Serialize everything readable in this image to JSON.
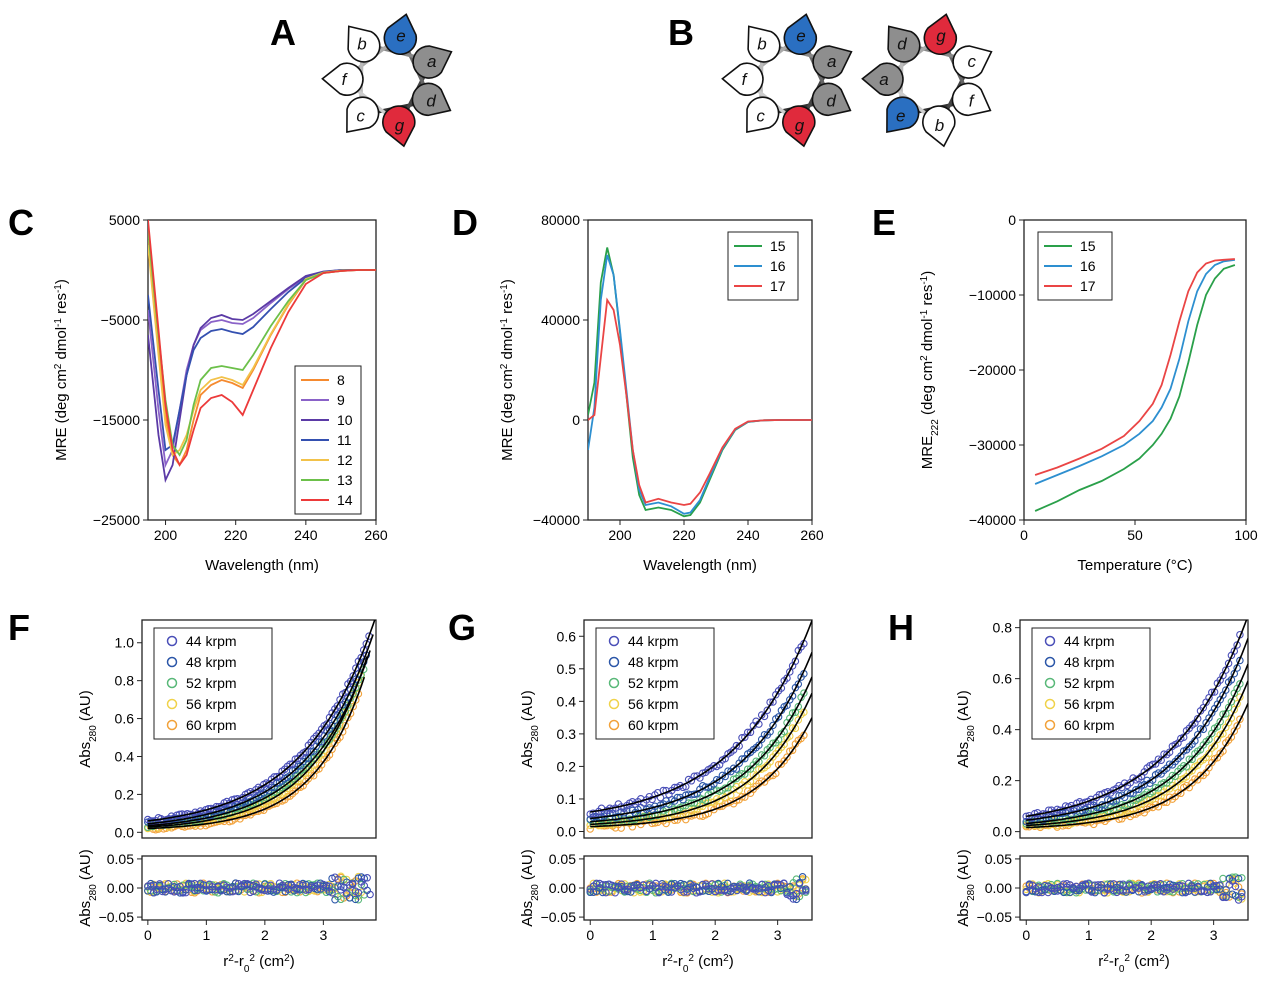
{
  "panel_labels": [
    "A",
    "B",
    "C",
    "D",
    "E",
    "F",
    "G",
    "H"
  ],
  "colors": {
    "red": "#e02a3c",
    "blue": "#2a6fc1",
    "grey": "#8e8e8e",
    "white": "#ffffff",
    "s8": "#f58a2f",
    "s9": "#8a62c8",
    "s10": "#5b3aa6",
    "s11": "#3450b0",
    "s12": "#f2c24a",
    "s13": "#6cc04a",
    "s14": "#ec3a3a",
    "s15": "#2aa04a",
    "s16": "#2d8fd0",
    "s17": "#ea4545",
    "k44": "#4a4fb8",
    "k48": "#2b56a8",
    "k52": "#58b878",
    "k56": "#f0d24a",
    "k60": "#f2a23a"
  },
  "wheels": {
    "A": {
      "positions": [
        "c",
        "g",
        "d",
        "a",
        "e",
        "b",
        "f"
      ],
      "fills": [
        "white",
        "red",
        "grey",
        "grey",
        "blue",
        "white",
        "white"
      ]
    },
    "B_left": {
      "positions": [
        "c",
        "g",
        "d",
        "a",
        "e",
        "b",
        "f"
      ],
      "fills": [
        "white",
        "red",
        "grey",
        "grey",
        "blue",
        "white",
        "white"
      ]
    },
    "B_right": {
      "positions": [
        "e",
        "b",
        "f",
        "c",
        "g",
        "d",
        "a"
      ],
      "fills": [
        "blue",
        "white",
        "white",
        "white",
        "red",
        "grey",
        "grey"
      ]
    }
  },
  "chart_data": [
    {
      "panel": "C",
      "type": "line",
      "xlabel": "Wavelength (nm)",
      "ylabel": "MRE (deg cm2 dmol-1 res-1)",
      "xlim": [
        195,
        260
      ],
      "ylim": [
        -25000,
        5000
      ],
      "xticks": [
        200,
        220,
        240,
        260
      ],
      "yticks": [
        5000,
        -5000,
        -15000,
        -25000
      ],
      "legend": "lower-right",
      "x": [
        195,
        198,
        200,
        202,
        204,
        206,
        208,
        210,
        213,
        216,
        219,
        222,
        225,
        230,
        235,
        240,
        245,
        250,
        255,
        260
      ],
      "series": [
        {
          "name": "8",
          "color_key": "s8",
          "values": [
            3000,
            -7000,
            -14500,
            -18500,
            -19500,
            -18000,
            -15000,
            -12500,
            -11500,
            -11000,
            -11300,
            -11800,
            -10000,
            -6500,
            -3500,
            -1000,
            -300,
            -100,
            0,
            0
          ]
        },
        {
          "name": "9",
          "color_key": "s9",
          "values": [
            -4000,
            -14000,
            -19500,
            -18000,
            -14000,
            -10000,
            -7500,
            -6000,
            -5200,
            -5000,
            -5300,
            -5400,
            -4800,
            -3300,
            -1900,
            -700,
            -200,
            0,
            0,
            0
          ]
        },
        {
          "name": "10",
          "color_key": "s10",
          "values": [
            -6500,
            -16500,
            -21000,
            -19500,
            -15000,
            -10500,
            -7500,
            -5800,
            -4800,
            -4500,
            -4900,
            -5000,
            -4400,
            -3100,
            -1800,
            -600,
            -150,
            0,
            0,
            0
          ]
        },
        {
          "name": "11",
          "color_key": "s11",
          "values": [
            -2500,
            -12000,
            -18000,
            -17500,
            -14000,
            -10500,
            -8000,
            -6800,
            -6100,
            -5900,
            -6200,
            -6400,
            -5700,
            -3900,
            -2200,
            -800,
            -200,
            0,
            0,
            0
          ]
        },
        {
          "name": "12",
          "color_key": "s12",
          "values": [
            2500,
            -8500,
            -15500,
            -18500,
            -18000,
            -16500,
            -14000,
            -12000,
            -11000,
            -10700,
            -11000,
            -11500,
            -9800,
            -6400,
            -3400,
            -900,
            -250,
            -50,
            0,
            0
          ]
        },
        {
          "name": "13",
          "color_key": "s13",
          "values": [
            4000,
            -6500,
            -13000,
            -17500,
            -18500,
            -17000,
            -13500,
            -11000,
            -9800,
            -9600,
            -9800,
            -10000,
            -8500,
            -5600,
            -3100,
            -1000,
            -300,
            -100,
            0,
            0
          ]
        },
        {
          "name": "14",
          "color_key": "s14",
          "values": [
            5000,
            -6000,
            -13500,
            -18000,
            -19500,
            -18500,
            -16000,
            -13800,
            -12800,
            -12500,
            -13200,
            -14500,
            -12000,
            -7800,
            -4200,
            -1400,
            -300,
            -100,
            0,
            0
          ]
        }
      ]
    },
    {
      "panel": "D",
      "type": "line",
      "xlabel": "Wavelength (nm)",
      "ylabel": "MRE (deg cm2 dmol-1 res-1)",
      "xlim": [
        190,
        260
      ],
      "ylim": [
        -40000,
        80000
      ],
      "xticks": [
        200,
        220,
        240,
        260
      ],
      "yticks": [
        80000,
        40000,
        0,
        -40000
      ],
      "legend": "top-right",
      "x": [
        190,
        192,
        194,
        196,
        198,
        200,
        202,
        204,
        206,
        208,
        212,
        216,
        220,
        222,
        225,
        228,
        232,
        236,
        240,
        245,
        250,
        255,
        260
      ],
      "series": [
        {
          "name": "15",
          "color_key": "s15",
          "values": [
            2000,
            15000,
            55000,
            69000,
            58000,
            35000,
            10000,
            -15000,
            -30000,
            -36000,
            -35000,
            -36000,
            -38500,
            -38000,
            -33000,
            -24000,
            -12000,
            -4000,
            -800,
            -100,
            0,
            0,
            0
          ]
        },
        {
          "name": "16",
          "color_key": "s16",
          "values": [
            -12000,
            5000,
            48000,
            66000,
            58000,
            36000,
            12000,
            -12000,
            -28000,
            -34000,
            -33000,
            -34500,
            -37500,
            -37000,
            -32000,
            -23000,
            -11500,
            -3800,
            -700,
            -100,
            0,
            0,
            0
          ]
        },
        {
          "name": "17",
          "color_key": "s17",
          "values": [
            0,
            2000,
            25000,
            48000,
            44000,
            30000,
            10000,
            -12000,
            -26000,
            -33000,
            -31500,
            -33000,
            -34000,
            -33500,
            -29000,
            -21500,
            -11000,
            -3500,
            -600,
            -100,
            0,
            0,
            0
          ]
        }
      ]
    },
    {
      "panel": "E",
      "type": "line",
      "xlabel": "Temperature (°C)",
      "ylabel": "MRE222 (deg cm2 dmol-1 res-1)",
      "xlim": [
        0,
        100
      ],
      "ylim": [
        -40000,
        0
      ],
      "xticks": [
        0,
        50,
        100
      ],
      "yticks": [
        0,
        -10000,
        -20000,
        -30000,
        -40000
      ],
      "legend": "top-left",
      "x": [
        5,
        15,
        25,
        35,
        45,
        52,
        58,
        62,
        66,
        70,
        74,
        78,
        82,
        86,
        90,
        95
      ],
      "series": [
        {
          "name": "15",
          "color_key": "s15",
          "values": [
            -38800,
            -37500,
            -36000,
            -34800,
            -33200,
            -31800,
            -30000,
            -28500,
            -26500,
            -23500,
            -19000,
            -14000,
            -10000,
            -7800,
            -6500,
            -6000
          ]
        },
        {
          "name": "16",
          "color_key": "s16",
          "values": [
            -35200,
            -34000,
            -32800,
            -31500,
            -30000,
            -28500,
            -26800,
            -25000,
            -22500,
            -18500,
            -13500,
            -9500,
            -7200,
            -6000,
            -5500,
            -5300
          ]
        },
        {
          "name": "17",
          "color_key": "s17",
          "values": [
            -34000,
            -33000,
            -31800,
            -30500,
            -28800,
            -26800,
            -24500,
            -22000,
            -18000,
            -13500,
            -9500,
            -7000,
            -5800,
            -5400,
            -5300,
            -5200
          ]
        }
      ]
    },
    {
      "panel": "F",
      "type": "scatter",
      "xlabel": "r2-r02 (cm2)",
      "ylabel": "Abs280 (AU)",
      "residual_ylabel": "Abs280 (AU)",
      "xlim": [
        -0.1,
        3.9
      ],
      "ylim": [
        -0.03,
        1.12
      ],
      "residual_ylim": [
        -0.055,
        0.055
      ],
      "xticks": [
        0,
        1,
        2,
        3
      ],
      "yticks": [
        0.0,
        0.2,
        0.4,
        0.6,
        0.8,
        1.0
      ],
      "residual_yticks": [
        0.05,
        0.0,
        -0.05
      ],
      "legend": "top-left",
      "series": [
        {
          "name": "44 krpm",
          "color_key": "k44",
          "baseline": 0.06,
          "amplitude": 0.046,
          "rate": 0.82,
          "xmax": 3.8
        },
        {
          "name": "48 krpm",
          "color_key": "k48",
          "baseline": 0.045,
          "amplitude": 0.0349,
          "rate": 0.88,
          "xmax": 3.75
        },
        {
          "name": "52 krpm",
          "color_key": "k52",
          "baseline": 0.035,
          "amplitude": 0.0257,
          "rate": 0.95,
          "xmax": 3.7
        },
        {
          "name": "56 krpm",
          "color_key": "k56",
          "baseline": 0.028,
          "amplitude": 0.0179,
          "rate": 1.05,
          "xmax": 3.65
        },
        {
          "name": "60 krpm",
          "color_key": "k60",
          "baseline": 0.02,
          "amplitude": 0.0115,
          "rate": 1.15,
          "xmax": 3.6
        }
      ]
    },
    {
      "panel": "G",
      "type": "scatter",
      "xlabel": "r2-r02 (cm2)",
      "ylabel": "Abs280 (AU)",
      "residual_ylabel": "Abs280 (AU)",
      "xlim": [
        -0.1,
        3.55
      ],
      "ylim": [
        -0.02,
        0.65
      ],
      "residual_ylim": [
        -0.055,
        0.055
      ],
      "xticks": [
        0,
        1,
        2,
        3
      ],
      "yticks": [
        0.0,
        0.1,
        0.2,
        0.3,
        0.4,
        0.5,
        0.6
      ],
      "residual_yticks": [
        0.05,
        0.0,
        -0.05
      ],
      "legend": "top-left",
      "series": [
        {
          "name": "44 krpm",
          "color_key": "k44",
          "baseline": 0.06,
          "amplitude": 0.0365,
          "rate": 0.8,
          "xmax": 3.45
        },
        {
          "name": "48 krpm",
          "color_key": "k48",
          "baseline": 0.04,
          "amplitude": 0.0235,
          "rate": 0.88,
          "xmax": 3.45
        },
        {
          "name": "52 krpm",
          "color_key": "k52",
          "baseline": 0.03,
          "amplitude": 0.0158,
          "rate": 0.95,
          "xmax": 3.45
        },
        {
          "name": "56 krpm",
          "color_key": "k56",
          "baseline": 0.022,
          "amplitude": 0.0103,
          "rate": 1.04,
          "xmax": 3.45
        },
        {
          "name": "60 krpm",
          "color_key": "k60",
          "baseline": 0.015,
          "amplitude": 0.0064,
          "rate": 1.12,
          "xmax": 3.45
        }
      ]
    },
    {
      "panel": "H",
      "type": "scatter",
      "xlabel": "r2-r02 (cm2)",
      "ylabel": "Abs280 (AU)",
      "residual_ylabel": "Abs280 (AU)",
      "xlim": [
        -0.1,
        3.55
      ],
      "ylim": [
        -0.025,
        0.83
      ],
      "residual_ylim": [
        -0.055,
        0.055
      ],
      "xticks": [
        0,
        1,
        2,
        3
      ],
      "yticks": [
        0.0,
        0.2,
        0.4,
        0.6,
        0.8
      ],
      "residual_yticks": [
        0.05,
        0.0,
        -0.05
      ],
      "legend": "top-left",
      "series": [
        {
          "name": "44 krpm",
          "color_key": "k44",
          "baseline": 0.06,
          "amplitude": 0.0488,
          "rate": 0.8,
          "xmax": 3.45
        },
        {
          "name": "48 krpm",
          "color_key": "k48",
          "baseline": 0.045,
          "amplitude": 0.0328,
          "rate": 0.88,
          "xmax": 3.45
        },
        {
          "name": "52 krpm",
          "color_key": "k52",
          "baseline": 0.032,
          "amplitude": 0.0222,
          "rate": 0.95,
          "xmax": 3.45
        },
        {
          "name": "56 krpm",
          "color_key": "k56",
          "baseline": 0.024,
          "amplitude": 0.0145,
          "rate": 1.04,
          "xmax": 3.45
        },
        {
          "name": "60 krpm",
          "color_key": "k60",
          "baseline": 0.016,
          "amplitude": 0.0093,
          "rate": 1.12,
          "xmax": 3.45
        }
      ]
    }
  ]
}
